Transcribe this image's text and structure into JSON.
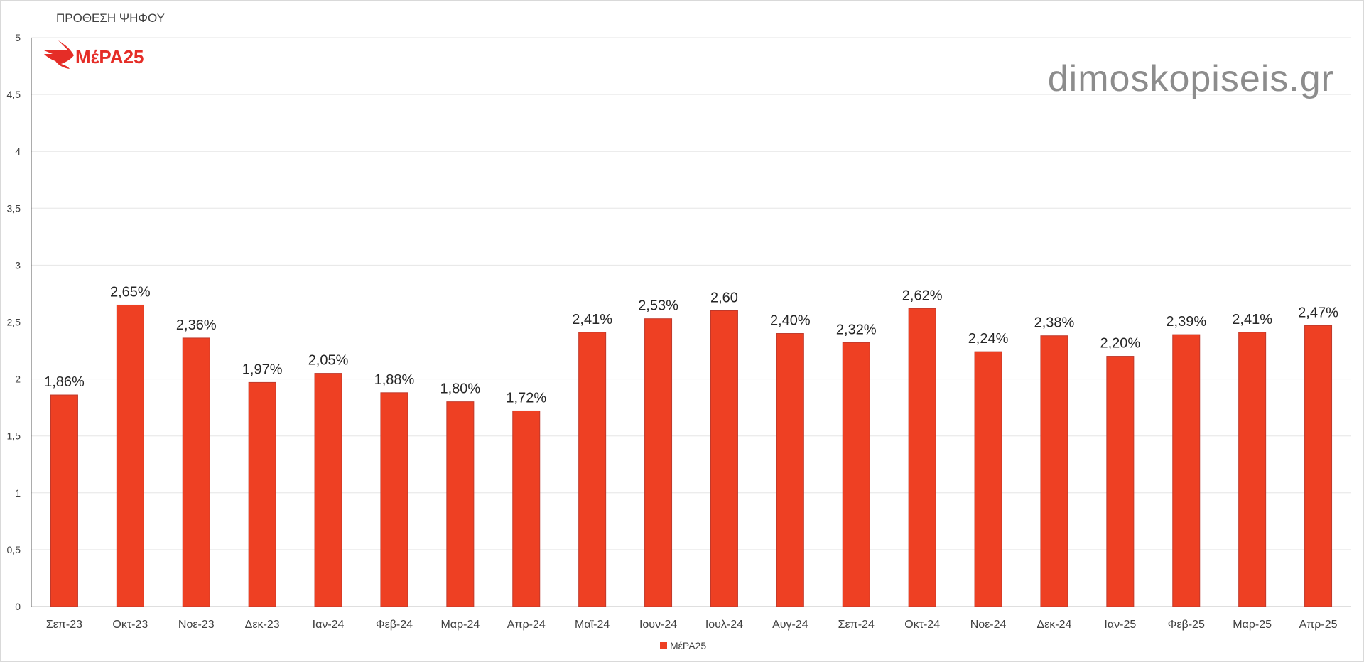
{
  "chart_data": {
    "type": "bar",
    "title": "ΠΡΟΘΕΣΗ ΨΗΦΟΥ",
    "xlabel": "",
    "ylabel": "",
    "ylim": [
      0,
      5
    ],
    "yticks": [
      "0",
      "0,5",
      "1",
      "1,5",
      "2",
      "2,5",
      "3",
      "3,5",
      "4",
      "4,5",
      "5"
    ],
    "grid": true,
    "legend_position": "bottom",
    "categories": [
      "Σεπ-23",
      "Οκτ-23",
      "Νοε-23",
      "Δεκ-23",
      "Ιαν-24",
      "Φεβ-24",
      "Μαρ-24",
      "Απρ-24",
      "Μαϊ-24",
      "Ιουν-24",
      "Ιουλ-24",
      "Αυγ-24",
      "Σεπ-24",
      "Οκτ-24",
      "Νοε-24",
      "Δεκ-24",
      "Ιαν-25",
      "Φεβ-25",
      "Μαρ-25",
      "Απρ-25"
    ],
    "series": [
      {
        "name": "ΜέΡΑ25",
        "color": "#ee4023",
        "values": [
          1.86,
          2.65,
          2.36,
          1.97,
          2.05,
          1.88,
          1.8,
          1.72,
          2.41,
          2.53,
          2.6,
          2.4,
          2.32,
          2.62,
          2.24,
          2.38,
          2.2,
          2.39,
          2.41,
          2.47
        ],
        "data_labels": [
          "1,86%",
          "2,65%",
          "2,36%",
          "1,97%",
          "2,05%",
          "1,88%",
          "1,80%",
          "1,72%",
          "2,41%",
          "2,53%",
          "2,60",
          "2,40%",
          "2,32%",
          "2,62%",
          "2,24%",
          "2,38%",
          "2,20%",
          "2,39%",
          "2,41%",
          "2,47%"
        ]
      }
    ]
  },
  "logo": {
    "text": "ΜέΡΑ25",
    "color": "#e52d27"
  },
  "watermark": {
    "text": "dimoskopiseis.gr"
  },
  "colors": {
    "bar": "#ee4023",
    "bar_edge": "#c0392b",
    "grid": "#e6e6e6",
    "axis": "#404040"
  }
}
